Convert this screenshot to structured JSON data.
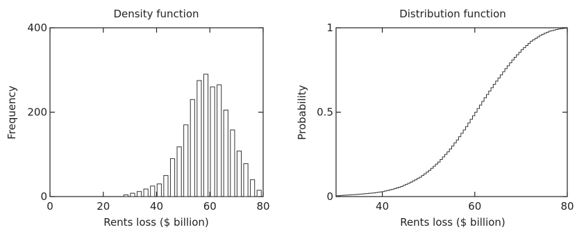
{
  "chart_data": [
    {
      "type": "bar",
      "title": "Density function",
      "xlabel": "Rents loss ($ billion)",
      "ylabel": "Frequency",
      "xlim": [
        0,
        80
      ],
      "ylim": [
        0,
        400
      ],
      "xticks": [
        "0",
        "20",
        "40",
        "60",
        "80"
      ],
      "yticks": [
        "0",
        "200",
        "400"
      ],
      "bin_width": 1.6,
      "bins": [
        {
          "x": 28.5,
          "y": 4
        },
        {
          "x": 31.0,
          "y": 8
        },
        {
          "x": 33.5,
          "y": 12
        },
        {
          "x": 36.0,
          "y": 18
        },
        {
          "x": 38.5,
          "y": 25
        },
        {
          "x": 41.0,
          "y": 30
        },
        {
          "x": 43.5,
          "y": 50
        },
        {
          "x": 46.0,
          "y": 90
        },
        {
          "x": 48.5,
          "y": 118
        },
        {
          "x": 51.0,
          "y": 170
        },
        {
          "x": 53.5,
          "y": 230
        },
        {
          "x": 56.0,
          "y": 275
        },
        {
          "x": 58.5,
          "y": 290
        },
        {
          "x": 61.0,
          "y": 260
        },
        {
          "x": 63.5,
          "y": 265
        },
        {
          "x": 66.0,
          "y": 205
        },
        {
          "x": 68.5,
          "y": 158
        },
        {
          "x": 71.0,
          "y": 108
        },
        {
          "x": 73.5,
          "y": 78
        },
        {
          "x": 76.0,
          "y": 40
        },
        {
          "x": 78.5,
          "y": 15
        }
      ]
    },
    {
      "type": "line",
      "title": "Distribution function",
      "xlabel": "Rents loss ($ billion)",
      "ylabel": "Probability",
      "xlim": [
        30,
        80
      ],
      "ylim": [
        0,
        1
      ],
      "xticks": [
        "40",
        "60",
        "80"
      ],
      "yticks": [
        "0",
        "0.5",
        "1"
      ],
      "x": [
        30,
        34,
        38,
        40,
        42,
        44,
        46,
        48,
        50,
        52,
        54,
        56,
        58,
        60,
        62,
        64,
        66,
        68,
        70,
        72,
        74,
        76,
        78,
        80
      ],
      "y": [
        0.005,
        0.012,
        0.022,
        0.03,
        0.043,
        0.06,
        0.085,
        0.115,
        0.155,
        0.205,
        0.265,
        0.335,
        0.415,
        0.5,
        0.585,
        0.665,
        0.74,
        0.81,
        0.87,
        0.92,
        0.955,
        0.98,
        0.993,
        1.0
      ]
    }
  ]
}
